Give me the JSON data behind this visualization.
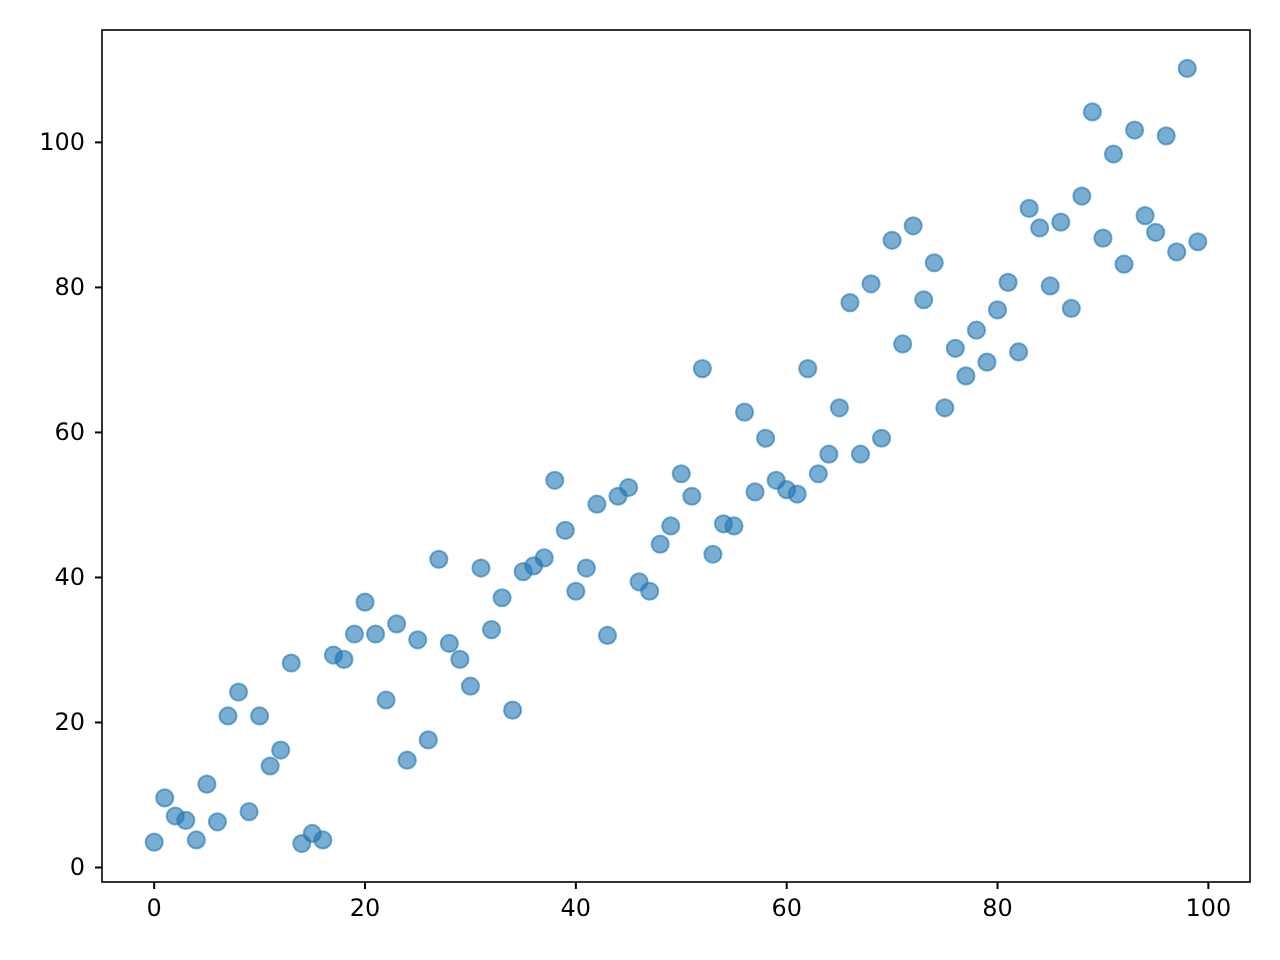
{
  "chart_data": {
    "type": "scatter",
    "x": [
      0,
      1,
      2,
      3,
      4,
      5,
      6,
      7,
      8,
      9,
      10,
      11,
      12,
      13,
      14,
      15,
      16,
      17,
      18,
      19,
      20,
      21,
      22,
      23,
      24,
      25,
      26,
      27,
      28,
      29,
      30,
      31,
      32,
      33,
      34,
      35,
      36,
      37,
      38,
      39,
      40,
      41,
      42,
      43,
      44,
      45,
      46,
      47,
      48,
      49,
      50,
      51,
      52,
      53,
      54,
      55,
      56,
      57,
      58,
      59,
      60,
      61,
      62,
      63,
      64,
      65,
      66,
      67,
      68,
      69,
      70,
      71,
      72,
      73,
      74,
      75,
      76,
      77,
      78,
      79,
      80,
      81,
      82,
      83,
      84,
      85,
      86,
      87,
      88,
      89,
      90,
      91,
      92,
      93,
      94,
      95,
      96,
      97,
      98,
      99
    ],
    "series": [
      {
        "color": "#1f77b4",
        "values": [
          3.5,
          9.6,
          7.1,
          6.5,
          3.8,
          11.5,
          6.3,
          20.9,
          24.2,
          7.7,
          20.9,
          14.0,
          16.2,
          28.2,
          3.3,
          4.7,
          3.8,
          29.3,
          28.7,
          32.2,
          36.6,
          32.2,
          23.1,
          33.6,
          14.8,
          31.4,
          17.6,
          42.5,
          30.9,
          28.7,
          25.0,
          41.3,
          32.8,
          37.2,
          21.7,
          40.8,
          41.6,
          42.7,
          53.4,
          46.5,
          38.1,
          41.3,
          50.1,
          32.0,
          51.2,
          52.4,
          39.4,
          38.1,
          44.6,
          47.1,
          54.3,
          51.2,
          68.8,
          43.2,
          47.4,
          47.1,
          62.8,
          51.8,
          59.2,
          53.4,
          52.1,
          51.5,
          68.8,
          54.3,
          57.0,
          63.4,
          77.9,
          57.0,
          80.5,
          59.2,
          86.5,
          72.2,
          88.5,
          78.3,
          83.4,
          63.4,
          71.6,
          67.8,
          74.1,
          69.7,
          76.9,
          80.7,
          71.1,
          90.9,
          88.2,
          80.2,
          89.0,
          77.1,
          92.6,
          104.2,
          86.8,
          98.4,
          83.2,
          101.7,
          89.9,
          87.6,
          100.9,
          84.9,
          110.2,
          86.3
        ]
      }
    ],
    "xlim": [
      -4.95,
      103.95
    ],
    "ylim": [
      -2,
      115.5
    ],
    "xticks": [
      0,
      20,
      40,
      60,
      80,
      100
    ],
    "yticks": [
      0,
      20,
      40,
      60,
      80,
      100
    ],
    "marker": "circle"
  }
}
